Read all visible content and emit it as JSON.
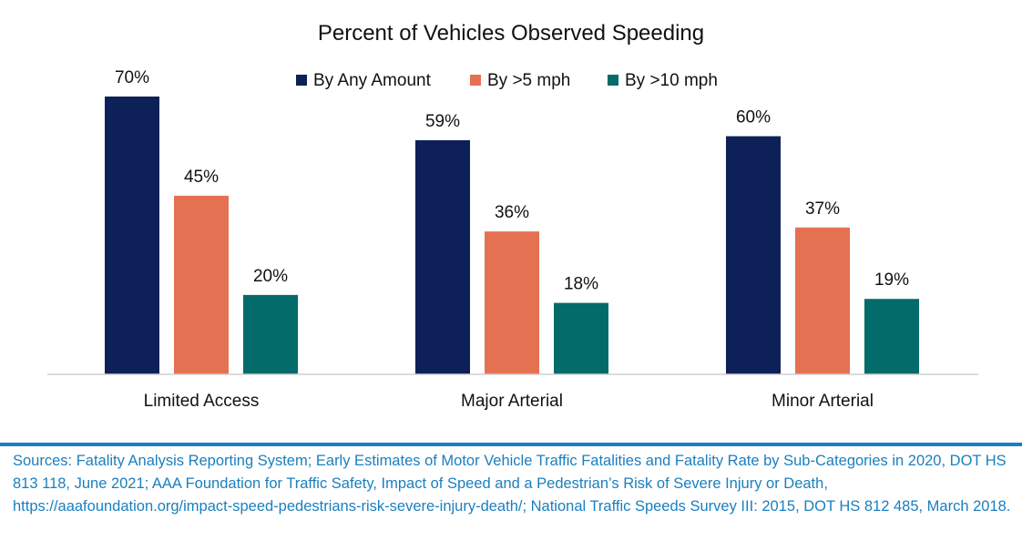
{
  "chart_data": {
    "type": "bar",
    "title": "Percent of Vehicles Observed Speeding",
    "categories": [
      "Limited Access",
      "Major Arterial",
      "Minor Arterial"
    ],
    "series": [
      {
        "name": "By Any Amount",
        "values": [
          70,
          59,
          60
        ],
        "labels": [
          "70%",
          "59%",
          "60%"
        ],
        "color": "#0d2158"
      },
      {
        "name": "By >5 mph",
        "values": [
          45,
          36,
          37
        ],
        "labels": [
          "45%",
          "36%",
          "37%"
        ],
        "color": "#e57153"
      },
      {
        "name": "By >10 mph",
        "values": [
          20,
          18,
          19
        ],
        "labels": [
          "20%",
          "18%",
          "19%"
        ],
        "color": "#036b69"
      }
    ],
    "ylim": [
      0,
      70
    ],
    "grid": false,
    "legend_position": "top-center",
    "xlabel": "",
    "ylabel": ""
  },
  "footer": {
    "sources": "Sources: Fatality Analysis Reporting System; Early Estimates of Motor Vehicle Traffic Fatalities and Fatality Rate by Sub-Categories in 2020, DOT HS 813 118, June 2021; AAA Foundation for Traffic Safety, Impact of Speed and a Pedestrian’s Risk of Severe Injury or Death, https://aaafoundation.org/impact-speed-pedestrians-risk-severe-injury-death/; National Traffic Speeds Survey III: 2015, DOT HS 812 485, March 2018."
  }
}
